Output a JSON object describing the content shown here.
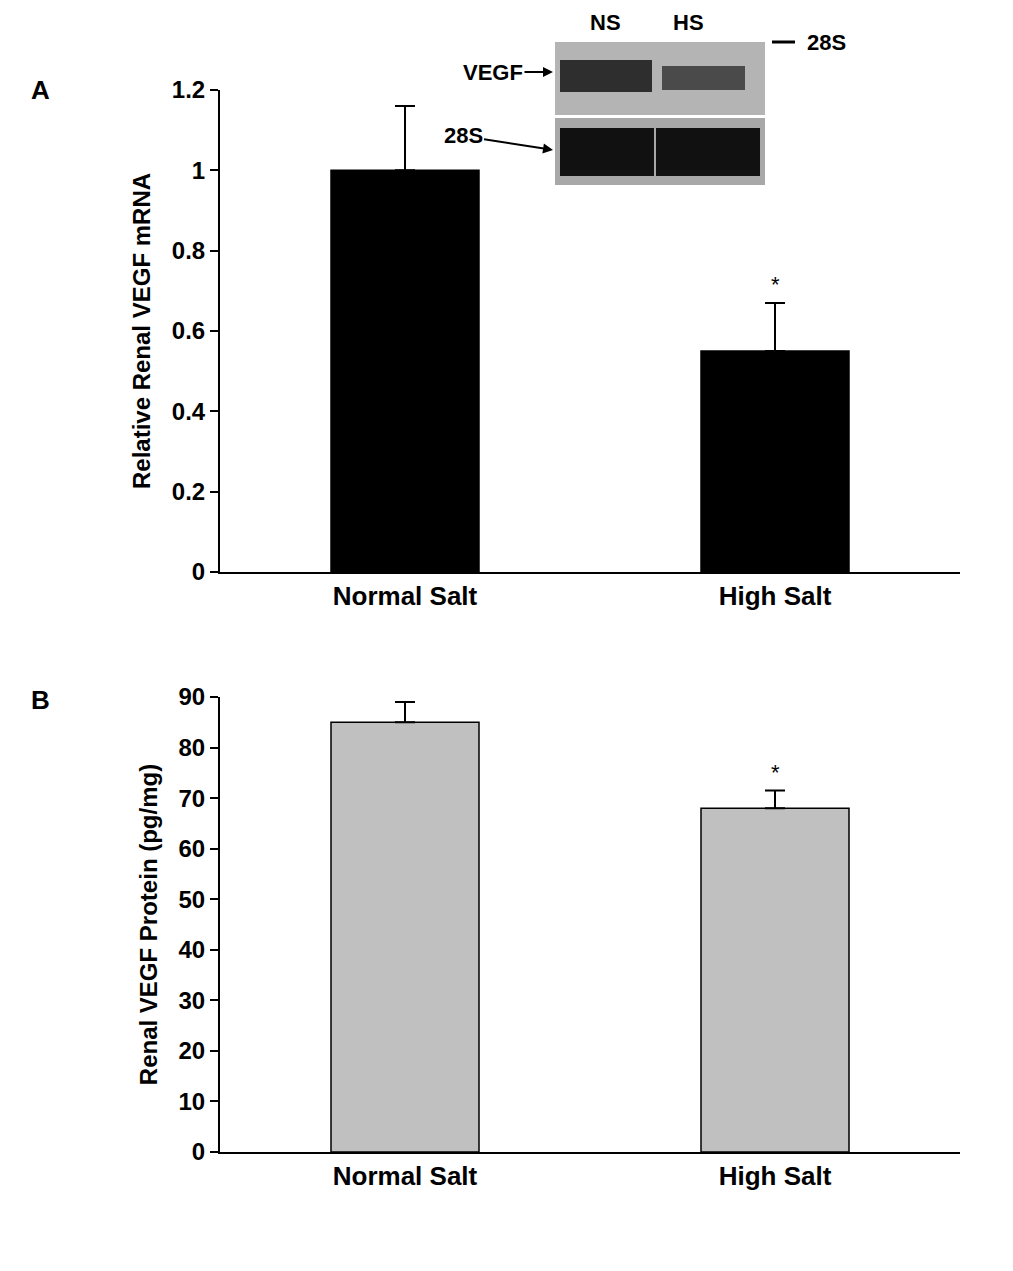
{
  "chart_data": [
    {
      "type": "bar",
      "title": "A",
      "categories": [
        "Normal Salt",
        "High Salt"
      ],
      "values": [
        1.0,
        0.55
      ],
      "errors": [
        0.16,
        0.12
      ],
      "color": "#000000",
      "y_label": "Relative Renal VEGF mRNA",
      "ylim": [
        0,
        1.2
      ],
      "yticks": [
        0,
        0.2,
        0.4,
        0.6,
        0.8,
        1,
        1.2
      ],
      "grid": false,
      "annotations": [
        {
          "text": "*",
          "x": "High Salt"
        }
      ],
      "inset": {
        "lanes": [
          "NS",
          "HS"
        ],
        "rows": [
          "VEGF",
          "28S"
        ],
        "ladder_mark": "28S"
      }
    },
    {
      "type": "bar",
      "title": "B",
      "categories": [
        "Normal Salt",
        "High Salt"
      ],
      "values": [
        85,
        68
      ],
      "errors": [
        4,
        3.5
      ],
      "color": "#c0c0c0",
      "y_label": "Renal VEGF Protein (pg/mg)",
      "ylim": [
        0,
        90
      ],
      "yticks": [
        0,
        10,
        20,
        30,
        40,
        50,
        60,
        70,
        80,
        90
      ],
      "grid": false,
      "annotations": [
        {
          "text": "*",
          "x": "High Salt"
        }
      ]
    }
  ]
}
